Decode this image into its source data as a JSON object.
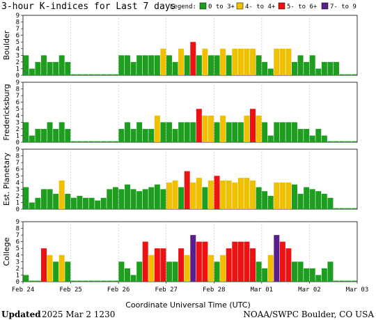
{
  "title": "3-hour K-indices for Last 7 days",
  "legend": {
    "label": "Legend:",
    "items": [
      {
        "label": "0 to 3+",
        "color": "#1e9e1e"
      },
      {
        "label": "4- to 4+",
        "color": "#f0c000"
      },
      {
        "label": "5- to 6+",
        "color": "#ee1111"
      },
      {
        "label": "7- to 9",
        "color": "#5a1f8c"
      }
    ]
  },
  "footer": {
    "updated_label": "Updated",
    "updated_value": "2025 Mar  2 1230",
    "credit": "NOAA/SWPC Boulder, CO USA"
  },
  "chart_data": {
    "type": "bar",
    "ylim": [
      0,
      9
    ],
    "yticks": [
      0,
      1,
      2,
      3,
      4,
      5,
      6,
      7,
      8,
      9
    ],
    "xlabel": "Coordinate Universal Time (UTC)",
    "xtick_labels": [
      "Feb 24",
      "Feb 25",
      "Feb 26",
      "Feb 27",
      "Feb 28",
      "Mar 01",
      "Mar 02",
      "Mar 03"
    ],
    "intervals_per_day": 8,
    "panels": [
      {
        "name": "Boulder",
        "values": [
          3,
          1,
          2,
          3,
          2,
          2,
          3,
          2,
          0,
          0,
          0,
          0,
          0,
          0,
          0,
          0,
          3,
          3,
          2,
          3,
          3,
          3,
          3,
          4,
          3,
          2,
          4,
          3,
          5,
          3,
          4,
          3,
          3,
          4,
          3,
          4,
          4,
          4,
          4,
          3,
          2,
          1,
          4,
          4,
          4,
          2,
          3,
          2,
          3,
          1,
          2,
          2,
          2,
          0,
          0,
          0
        ]
      },
      {
        "name": "Fredericksburg",
        "values": [
          3,
          1,
          2,
          2,
          3,
          2,
          3,
          2,
          0,
          0,
          0,
          0,
          0,
          0,
          0,
          0,
          2,
          3,
          2,
          3,
          2,
          2,
          4,
          3,
          3,
          2,
          3,
          3,
          3,
          5,
          4,
          4,
          3,
          4,
          3,
          3,
          3,
          4,
          5,
          4,
          3,
          1,
          3,
          3,
          3,
          3,
          2,
          2,
          1,
          2,
          1,
          0,
          0,
          0,
          0,
          0
        ]
      },
      {
        "name": "Est. Planetary",
        "values": [
          3.3,
          1,
          1.7,
          3,
          3,
          2.3,
          4.3,
          2.3,
          1.7,
          2,
          1.7,
          1.7,
          1.3,
          1.7,
          3,
          3.3,
          3,
          3.7,
          3,
          2.7,
          3,
          3.3,
          3.7,
          3,
          4,
          4.3,
          3.3,
          5.7,
          4,
          4.7,
          3.3,
          4.3,
          5,
          4.3,
          4.3,
          4,
          4.7,
          4.7,
          4.3,
          3.3,
          2.7,
          2,
          4,
          4,
          4,
          3.7,
          2.3,
          3.3,
          3,
          2.7,
          2.3,
          1.7,
          0,
          0,
          0,
          0
        ]
      },
      {
        "name": "College",
        "values": [
          1,
          0,
          0,
          5,
          4,
          3,
          4,
          3,
          0,
          0,
          0,
          0,
          0,
          0,
          0,
          0,
          3,
          2,
          1,
          3,
          6,
          4,
          5,
          5,
          3,
          3,
          5,
          4,
          7,
          6,
          6,
          4,
          3,
          4,
          5,
          6,
          6,
          6,
          5,
          3,
          2,
          4,
          7,
          6,
          5,
          3,
          3,
          2,
          2,
          1,
          2,
          3,
          0,
          0,
          0,
          0
        ]
      }
    ]
  }
}
